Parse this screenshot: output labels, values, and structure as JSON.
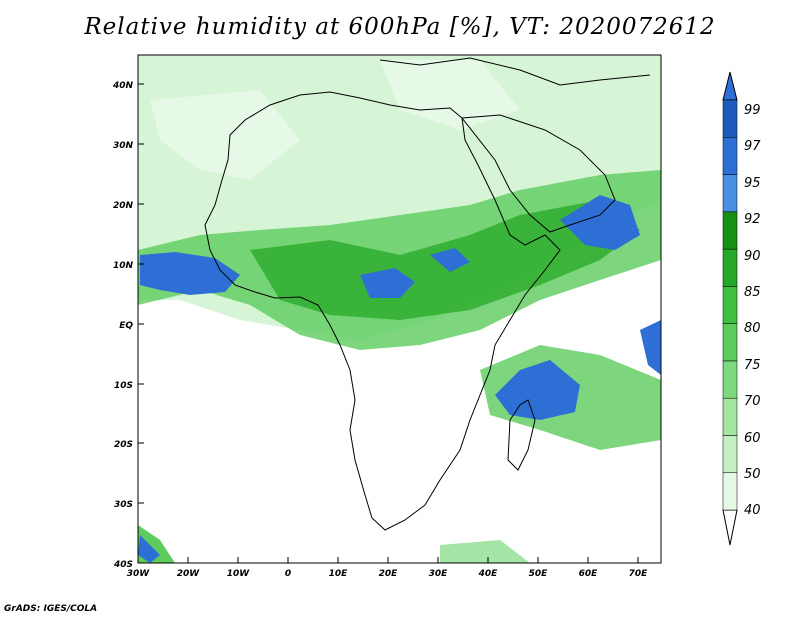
{
  "title": "Relative humidity at 600hPa [%], VT: 2020072612",
  "credit": "GrADS: IGES/COLA",
  "map": {
    "lon_labels": [
      "30W",
      "20W",
      "10W",
      "0",
      "10E",
      "20E",
      "30E",
      "40E",
      "50E",
      "60E",
      "70E"
    ],
    "lat_labels": [
      "40N",
      "30N",
      "20N",
      "10N",
      "EQ",
      "10S",
      "20S",
      "30S",
      "40S"
    ],
    "lon_range": [
      -30,
      75
    ],
    "lat_range": [
      -40,
      44
    ]
  },
  "colorbar": {
    "levels": [
      "40",
      "50",
      "60",
      "70",
      "75",
      "80",
      "85",
      "90",
      "92",
      "95",
      "97",
      "99"
    ],
    "colors": [
      "#ffffff",
      "#e6f9e6",
      "#c4f0c4",
      "#a2e6a2",
      "#7ed97e",
      "#5ccc5c",
      "#3fbf3f",
      "#27a827",
      "#159015",
      "#4a90e2",
      "#2e6fd6",
      "#1f5bbf",
      "#1a4ea8"
    ]
  }
}
